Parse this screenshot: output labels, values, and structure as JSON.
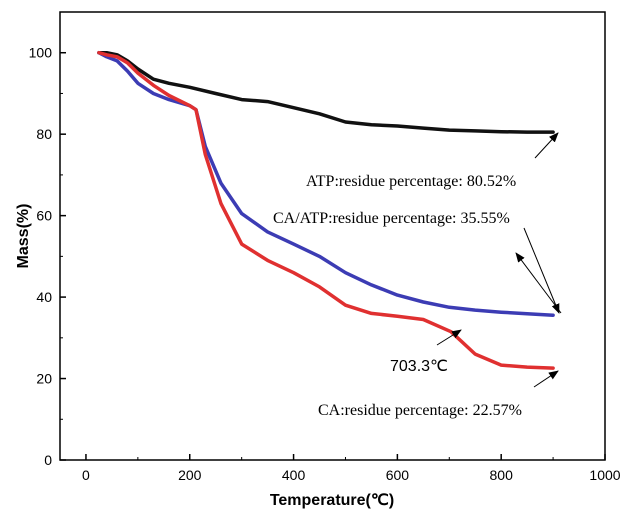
{
  "chart_data": {
    "type": "line",
    "xlabel": "Temperature(℃)",
    "ylabel": "Mass(%)",
    "xlim": [
      -50,
      1000
    ],
    "ylim": [
      0,
      110
    ],
    "xticks": [
      0,
      200,
      400,
      600,
      800,
      1000
    ],
    "yticks": [
      0,
      20,
      40,
      60,
      80,
      100
    ],
    "grid": false,
    "series": [
      {
        "color": "#111111",
        "x": [
          25,
          40,
          60,
          80,
          100,
          130,
          160,
          200,
          250,
          300,
          350,
          400,
          450,
          500,
          550,
          600,
          650,
          700,
          750,
          800,
          850,
          900
        ],
        "y": [
          100,
          100,
          99.5,
          98,
          96,
          93.5,
          92.5,
          91.5,
          90,
          88.5,
          88,
          86.5,
          85,
          83,
          82.3,
          82,
          81.5,
          81,
          80.8,
          80.6,
          80.5,
          80.52
        ]
      },
      {
        "color": "#3c3cb4",
        "x": [
          25,
          40,
          60,
          80,
          100,
          130,
          160,
          200,
          212,
          230,
          260,
          300,
          350,
          400,
          450,
          500,
          550,
          600,
          650,
          700,
          750,
          800,
          850,
          900
        ],
        "y": [
          100,
          99,
          98,
          95.5,
          92.5,
          90,
          88.5,
          87,
          86,
          77,
          68,
          60.5,
          56,
          53,
          50,
          46,
          43,
          40.5,
          38.8,
          37.5,
          36.8,
          36.3,
          35.9,
          35.55
        ]
      },
      {
        "color": "#e03030",
        "x": [
          25,
          40,
          60,
          80,
          100,
          130,
          160,
          200,
          212,
          230,
          260,
          300,
          350,
          400,
          450,
          500,
          550,
          600,
          650,
          703.3,
          750,
          800,
          850,
          900
        ],
        "y": [
          100,
          99.5,
          99,
          97.5,
          95,
          92,
          89.5,
          87,
          86,
          75,
          63,
          53,
          49,
          46,
          42.5,
          38,
          36,
          35.3,
          34.5,
          31.5,
          26,
          23.3,
          22.8,
          22.57
        ]
      }
    ],
    "annotations": [
      {
        "text": "ATP:residue percentage: 80.52%",
        "arrow_to": [
          900,
          80.52
        ]
      },
      {
        "text": "CA/ATP:residue percentage: 35.55%",
        "arrow_to": [
          900,
          35.55
        ]
      },
      {
        "text": "703.3℃",
        "arrow_to": [
          703.3,
          31.5
        ]
      },
      {
        "text": "CA:residue percentage: 22.57%",
        "arrow_to": [
          900,
          22.57
        ]
      }
    ]
  }
}
